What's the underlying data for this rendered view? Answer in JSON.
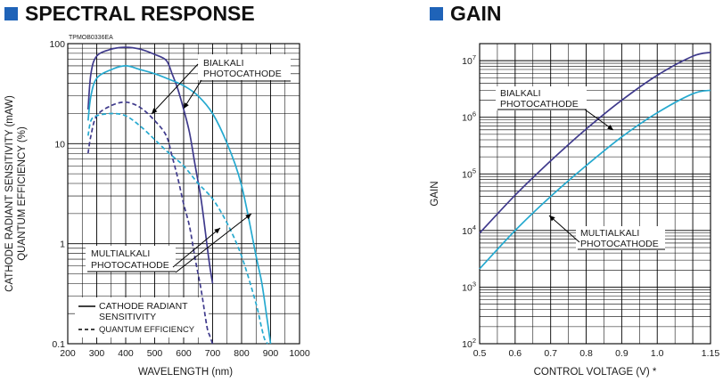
{
  "colors": {
    "accent": "#1f63b8",
    "bialkali": "#3f3a8c",
    "multialkali": "#25a9cf",
    "grid": "#000000",
    "text": "#1a1a1a"
  },
  "left_panel": {
    "heading": "SPECTRAL RESPONSE",
    "heading_icon": "square-bullet-icon"
  },
  "right_panel": {
    "heading": "GAIN",
    "heading_icon": "square-bullet-icon"
  },
  "chart_data": [
    {
      "type": "line",
      "title": "SPECTRAL RESPONSE",
      "code": "TPMOB0336EA",
      "xlabel": "WAVELENGTH (nm)",
      "ylabel_lines": [
        "CATHODE RADIANT SENSITIVITY (mAW)",
        "QUANTUM EFFICIENCY (%)"
      ],
      "xlim": [
        200,
        1000
      ],
      "ylim": [
        0.1,
        100
      ],
      "yscale": "log",
      "xticks": [
        "200",
        "300",
        "400",
        "500",
        "600",
        "700",
        "800",
        "900",
        "1000"
      ],
      "yticks": [
        {
          "value": 100,
          "label": "100"
        },
        {
          "value": 10,
          "label": "10"
        },
        {
          "value": 1,
          "label": "1"
        },
        {
          "value": 0.1,
          "label": "0.1"
        }
      ],
      "grid": true,
      "annotations": [
        {
          "text_lines": [
            "BIALKALI",
            "PHOTOCATHODE"
          ]
        },
        {
          "text_lines": [
            "MULTIALKALI",
            "PHOTOCATHODE"
          ]
        }
      ],
      "legend": {
        "placement": "bottom-left",
        "entries": [
          {
            "style": "solid",
            "text_lines": [
              "CATHODE RADIANT",
              "SENSITIVITY"
            ]
          },
          {
            "style": "dashed",
            "text": "QUANTUM EFFICIENCY"
          }
        ]
      },
      "series": [
        {
          "material": "bialkali",
          "quantity": "cathode radiant sensitivity",
          "style": "solid",
          "x": [
            270,
            280,
            300,
            350,
            400,
            450,
            500,
            540,
            560,
            580,
            600,
            620,
            640,
            660,
            680,
            690,
            700
          ],
          "y": [
            22,
            50,
            75,
            88,
            92,
            88,
            78,
            68,
            50,
            35,
            22,
            13,
            6,
            2.8,
            1,
            0.6,
            0.4
          ]
        },
        {
          "material": "bialkali",
          "quantity": "quantum efficiency",
          "style": "dashed",
          "x": [
            270,
            280,
            300,
            350,
            400,
            450,
            500,
            540,
            560,
            580,
            600,
            620,
            640,
            660,
            680,
            690,
            700
          ],
          "y": [
            8,
            12,
            19,
            24,
            26,
            23,
            17,
            12,
            7.5,
            4.5,
            2.5,
            1.5,
            0.7,
            0.35,
            0.15,
            0.12,
            0.1
          ]
        },
        {
          "material": "multialkali",
          "quantity": "cathode radiant sensitivity",
          "style": "solid",
          "x": [
            270,
            280,
            300,
            350,
            400,
            450,
            500,
            550,
            600,
            650,
            700,
            750,
            800,
            850,
            870,
            890,
            900
          ],
          "y": [
            17,
            30,
            45,
            55,
            60,
            55,
            50,
            44,
            38,
            30,
            20,
            10,
            3.8,
            0.75,
            0.4,
            0.16,
            0.1
          ]
        },
        {
          "material": "multialkali",
          "quantity": "quantum efficiency",
          "style": "dashed",
          "x": [
            270,
            280,
            300,
            350,
            400,
            450,
            500,
            550,
            600,
            650,
            700,
            750,
            800,
            850,
            870,
            880,
            890
          ],
          "y": [
            12,
            17,
            19,
            20,
            19,
            15,
            11,
            8,
            6,
            4,
            2.8,
            1.6,
            0.75,
            0.25,
            0.14,
            0.11,
            0.1
          ]
        }
      ]
    },
    {
      "type": "line",
      "title": "GAIN",
      "xlabel": "CONTROL VOLTAGE (V) *",
      "ylabel": "GAIN",
      "xlim": [
        0.5,
        1.15
      ],
      "ylim": [
        100,
        20000000
      ],
      "yscale": "log",
      "xticks": [
        "0.5",
        "0.6",
        "0.7",
        "0.8",
        "0.9",
        "1.0",
        "1.15"
      ],
      "xtick_values": [
        0.5,
        0.6,
        0.7,
        0.8,
        0.9,
        1.0,
        1.15
      ],
      "yticks": [
        {
          "value": 100,
          "base": "10",
          "exp": "2"
        },
        {
          "value": 1000,
          "base": "10",
          "exp": "3"
        },
        {
          "value": 10000,
          "base": "10",
          "exp": "4"
        },
        {
          "value": 100000,
          "base": "10",
          "exp": "5"
        },
        {
          "value": 1000000,
          "base": "10",
          "exp": "6"
        },
        {
          "value": 10000000,
          "base": "10",
          "exp": "7"
        }
      ],
      "grid": true,
      "annotations": [
        {
          "text_lines": [
            "BIALKALI",
            "PHOTOCATHODE"
          ]
        },
        {
          "text_lines": [
            "MULTIALKALI",
            "PHOTOCATHODE"
          ]
        }
      ],
      "series": [
        {
          "material": "bialkali",
          "x": [
            0.5,
            0.6,
            0.7,
            0.8,
            0.9,
            1.0,
            1.1,
            1.15
          ],
          "y": [
            9000,
            42000,
            170000,
            620000,
            2000000,
            5500000,
            12000000,
            14000000
          ]
        },
        {
          "material": "multialkali",
          "x": [
            0.5,
            0.6,
            0.7,
            0.8,
            0.9,
            1.0,
            1.1,
            1.15
          ],
          "y": [
            2100,
            10000,
            40000,
            140000,
            450000,
            1200000,
            2600000,
            3000000
          ]
        }
      ]
    }
  ]
}
